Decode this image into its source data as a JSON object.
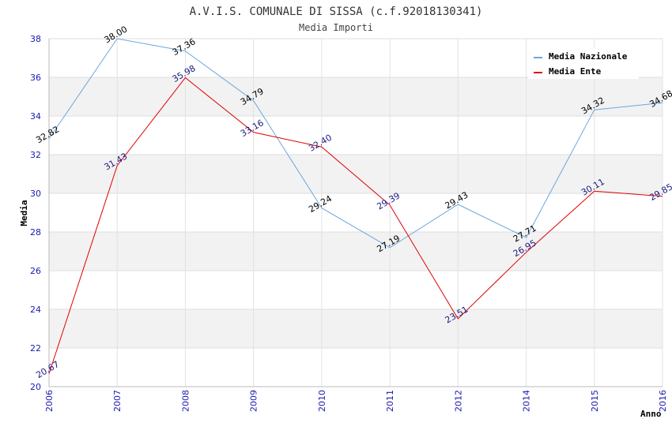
{
  "chart_data": {
    "type": "line",
    "title": "A.V.I.S. COMUNALE DI SISSA (c.f.92018130341)",
    "subtitle": "Media Importi",
    "xlabel": "Anno",
    "ylabel": "Media",
    "ylim": [
      20,
      38
    ],
    "yticks": [
      "20",
      "22",
      "24",
      "26",
      "28",
      "30",
      "32",
      "34",
      "36",
      "38"
    ],
    "categories": [
      "2006",
      "2007",
      "2008",
      "2009",
      "2010",
      "2011",
      "2012",
      "2014",
      "2015",
      "2016"
    ],
    "series": [
      {
        "name": "Media Nazionale",
        "color": "#6aa6e0",
        "label_color": "#000000",
        "values": [
          32.82,
          38.0,
          37.36,
          34.79,
          29.24,
          27.19,
          29.43,
          27.71,
          34.32,
          34.68
        ],
        "labels": [
          "32.82",
          "38.00",
          "37.36",
          "34.79",
          "29.24",
          "27.19",
          "29.43",
          "27.71",
          "34.32",
          "34.68"
        ]
      },
      {
        "name": "Media Ente",
        "color": "#e00000",
        "label_color": "#1a1a80",
        "values": [
          20.67,
          31.43,
          35.98,
          33.16,
          32.4,
          29.39,
          23.51,
          26.95,
          30.11,
          29.85
        ],
        "labels": [
          "20.67",
          "31.43",
          "35.98",
          "33.16",
          "32.40",
          "29.39",
          "23.51",
          "26.95",
          "30.11",
          "29.85"
        ]
      }
    ],
    "grid": true,
    "band_color": "#f2f2f2",
    "legend_position": "top-right"
  }
}
